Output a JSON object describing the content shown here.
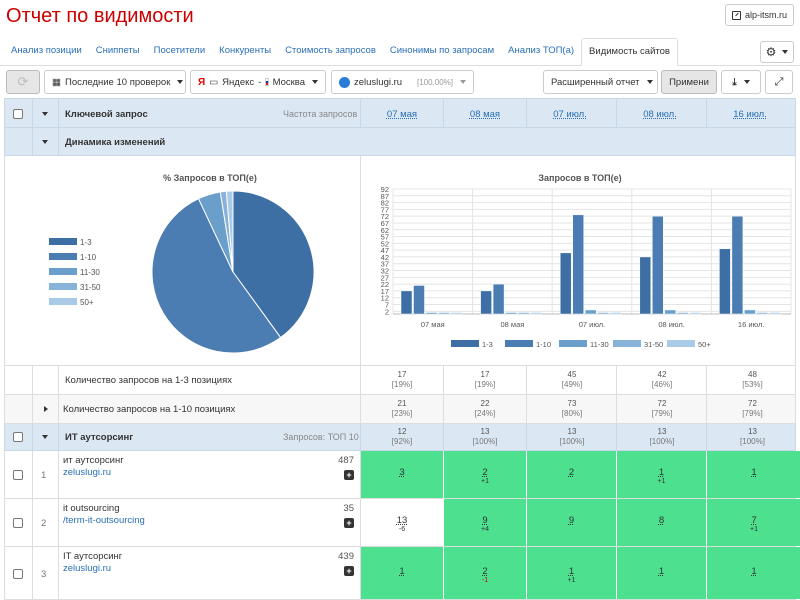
{
  "header": {
    "title": "Отчет по видимости",
    "site_button": "alp-itsm.ru"
  },
  "tabs": [
    {
      "label": "Анализ позиции"
    },
    {
      "label": "Сниппеты"
    },
    {
      "label": "Посетители"
    },
    {
      "label": "Конкуренты"
    },
    {
      "label": "Стоимость запросов"
    },
    {
      "label": "Синонимы по запросам"
    },
    {
      "label": "Анализ ТОП(а)"
    },
    {
      "label": "Видимость сайтов"
    }
  ],
  "toolbar": {
    "period": "Последние 10 проверок",
    "engine": "Яндекс",
    "engine_letter": "Я",
    "region": "Москва",
    "site": "zeluslugi.ru",
    "site_pct": "[100.00%]",
    "report": "Расширенный отчет",
    "apply": "Примени"
  },
  "table_header": {
    "keyword": "Ключевой запрос",
    "frequency": "Частота запросов",
    "dates": [
      "07 мая",
      "08 мая",
      "07 июл.",
      "08 июл.",
      "16 июл."
    ],
    "dynamics": "Динамика изменений"
  },
  "colors": {
    "s1_3": "#3d6fa5",
    "s1_10": "#4b7db3",
    "s11_30": "#6a9fcb",
    "s31_50": "#87b3d9",
    "s50p": "#a9cbe8",
    "green": "#4ce08f"
  },
  "chart_data": [
    {
      "type": "pie",
      "title": "% Запросов в ТОП(е)",
      "categories": [
        "1-3",
        "1-10",
        "11-30",
        "31-50",
        "50+"
      ],
      "values": [
        48,
        24,
        0,
        0,
        0
      ],
      "legend": "left"
    },
    {
      "type": "bar",
      "title": "Запросов в ТОП(е)",
      "categories": [
        "07 мая",
        "08 мая",
        "07 июл.",
        "08 июл.",
        "16 июл."
      ],
      "y_ticks": [
        "2",
        "7",
        "12",
        "17",
        "22",
        "27",
        "32",
        "37",
        "42",
        "47",
        "52",
        "57",
        "62",
        "67",
        "72",
        "77",
        "82",
        "87",
        "92"
      ],
      "ylim": [
        0,
        92
      ],
      "grid": true,
      "legend": "bottom",
      "series": [
        {
          "name": "1-3",
          "values": [
            17,
            17,
            45,
            42,
            48
          ]
        },
        {
          "name": "1-10",
          "values": [
            21,
            22,
            73,
            72,
            72
          ]
        },
        {
          "name": "11-30",
          "values": [
            0,
            0,
            3,
            3,
            3
          ]
        },
        {
          "name": "31-50",
          "values": [
            0,
            0,
            0,
            0,
            0
          ]
        },
        {
          "name": "50+",
          "values": [
            0,
            0,
            0,
            0,
            0
          ]
        }
      ]
    }
  ],
  "summary_rows": [
    {
      "label": "Количество запросов на 1-3 позициях",
      "cells": [
        [
          "17",
          "[19%]"
        ],
        [
          "17",
          "[19%]"
        ],
        [
          "45",
          "[49%]"
        ],
        [
          "42",
          "[46%]"
        ],
        [
          "48",
          "[53%]"
        ]
      ]
    },
    {
      "label": "Количество запросов на 1-10 позициях",
      "cells": [
        [
          "21",
          "[23%]"
        ],
        [
          "22",
          "[24%]"
        ],
        [
          "73",
          "[80%]"
        ],
        [
          "72",
          "[79%]"
        ],
        [
          "72",
          "[79%]"
        ]
      ]
    }
  ],
  "group": {
    "name": "ИТ аутсорсинг",
    "info": "Запросов: ТОП 10",
    "cells": [
      [
        "12",
        "[92%]"
      ],
      [
        "13",
        "[100%]"
      ],
      [
        "13",
        "[100%]"
      ],
      [
        "13",
        "[100%]"
      ],
      [
        "13",
        "[100%]"
      ]
    ]
  },
  "keywords": [
    {
      "n": "1",
      "query": "ит аутсорсинг",
      "url": "zeluslugi.ru",
      "freq": "487",
      "positions": [
        {
          "v": "3",
          "d": ""
        },
        {
          "v": "2",
          "d": "+1"
        },
        {
          "v": "2",
          "d": ""
        },
        {
          "v": "1",
          "d": "+1"
        },
        {
          "v": "1",
          "d": ""
        }
      ]
    },
    {
      "n": "2",
      "query": "it outsourcing",
      "url": "/term-it-outsourcing",
      "freq": "35",
      "positions": [
        {
          "v": "13",
          "d": "-6"
        },
        {
          "v": "9",
          "d": "+4"
        },
        {
          "v": "9",
          "d": ""
        },
        {
          "v": "8",
          "d": ""
        },
        {
          "v": "7",
          "d": "+1"
        }
      ]
    },
    {
      "n": "3",
      "query": "IT аутсорсинг",
      "url": "zeluslugi.ru",
      "freq": "439",
      "positions": [
        {
          "v": "1",
          "d": ""
        },
        {
          "v": "2",
          "d": "-1"
        },
        {
          "v": "1",
          "d": "+1"
        },
        {
          "v": "1",
          "d": ""
        },
        {
          "v": "1",
          "d": ""
        }
      ]
    }
  ]
}
